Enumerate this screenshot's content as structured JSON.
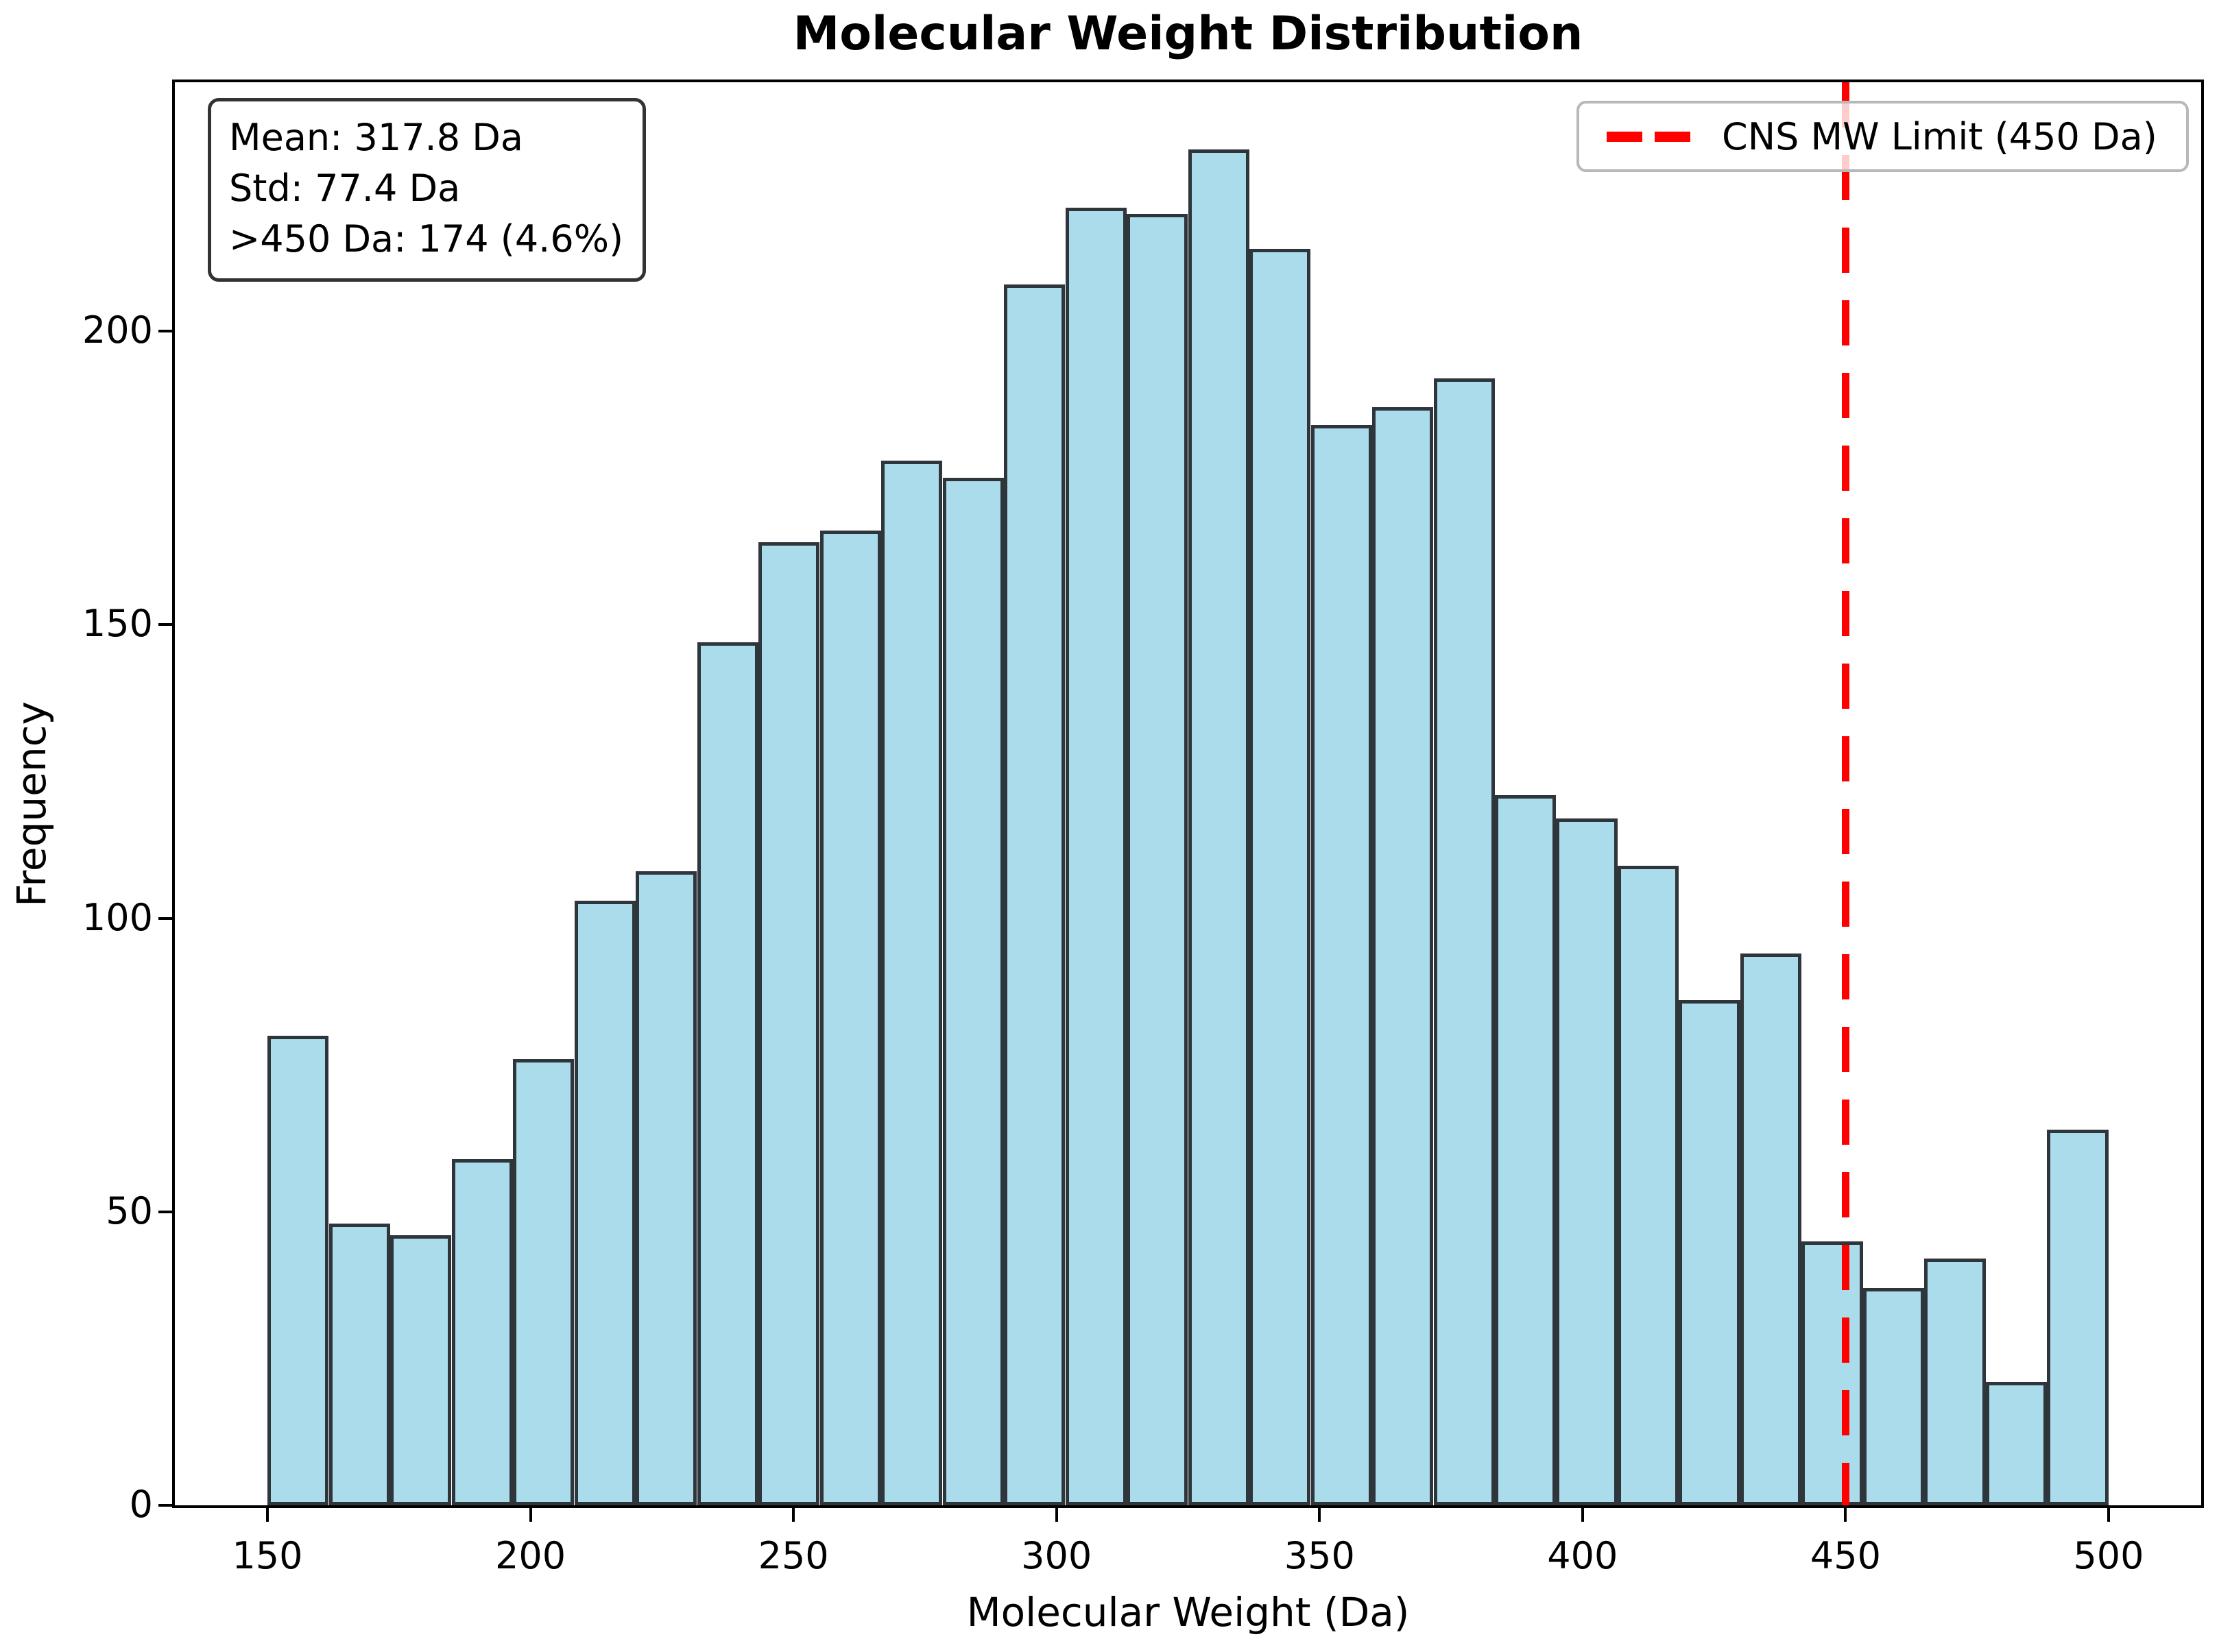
{
  "chart_data": {
    "type": "bar",
    "subtype": "histogram",
    "title": "Molecular Weight Distribution",
    "xlabel": "Molecular Weight (Da)",
    "ylabel": "Frequency",
    "bin_start": 150,
    "bin_end": 500,
    "n_bins": 30,
    "bin_width": 11.6667,
    "counts": [
      80,
      48,
      46,
      59,
      76,
      103,
      108,
      147,
      164,
      166,
      178,
      175,
      208,
      221,
      220,
      231,
      214,
      184,
      187,
      192,
      121,
      117,
      109,
      86,
      94,
      45,
      37,
      42,
      21,
      64
    ],
    "x_ticks": [
      150,
      200,
      250,
      300,
      350,
      400,
      450,
      500
    ],
    "y_ticks": [
      0,
      50,
      100,
      150,
      200
    ],
    "xlim": [
      132.4,
      517.6
    ],
    "ylim": [
      0,
      242.4
    ],
    "grid": false,
    "legend_position": "upper right",
    "legend": {
      "label": "CNS MW Limit (450 Da)"
    },
    "vline": {
      "x": 450,
      "color": "#ff0000",
      "style": "dashed"
    },
    "bar_color": "#abdcec",
    "bar_edge_color": "#2e353b",
    "stats_box": {
      "lines": [
        "Mean: 317.8 Da",
        "Std: 77.4 Da",
        ">450 Da: 174 (4.6%)"
      ]
    }
  }
}
